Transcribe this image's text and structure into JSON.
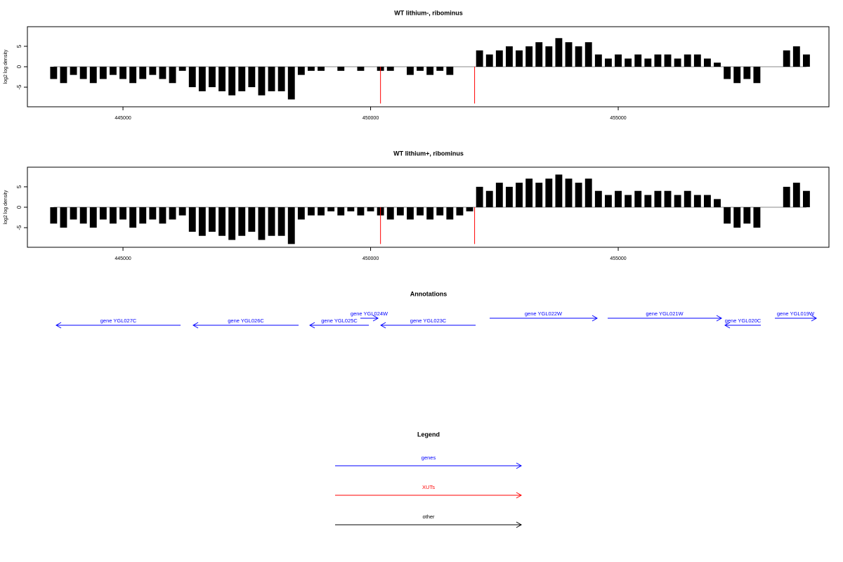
{
  "chart_data": [
    {
      "type": "bar",
      "title": "WT lithium-, ribominus",
      "ylabel": "log2 log density",
      "color": "#000000",
      "x": [
        443600,
        443800,
        444000,
        444200,
        444400,
        444600,
        444800,
        445000,
        445200,
        445400,
        445600,
        445800,
        446000,
        446200,
        446400,
        446600,
        446800,
        447000,
        447200,
        447400,
        447600,
        447800,
        448000,
        448200,
        448400,
        448600,
        448800,
        449000,
        449200,
        449400,
        449600,
        449800,
        450000,
        450200,
        450400,
        450600,
        450800,
        451000,
        451200,
        451400,
        451600,
        451800,
        452000,
        452200,
        452400,
        452600,
        452800,
        453000,
        453200,
        453400,
        453600,
        453800,
        454000,
        454200,
        454400,
        454600,
        454800,
        455000,
        455200,
        455400,
        455600,
        455800,
        456000,
        456200,
        456400,
        456600,
        456800,
        457000,
        457200,
        457400,
        457600,
        457800,
        458000,
        458200,
        458400,
        458600,
        458800
      ],
      "values": [
        -3,
        -4,
        -2,
        -3,
        -4,
        -3,
        -2,
        -3,
        -4,
        -3,
        -2,
        -3,
        -4,
        -1,
        -5,
        -6,
        -5,
        -6,
        -7,
        -6,
        -5,
        -7,
        -6,
        -6,
        -8,
        -2,
        -1,
        -1,
        0,
        -1,
        0,
        -1,
        0,
        -1,
        -1,
        0,
        -2,
        -1,
        -2,
        -1,
        -2,
        0,
        0,
        4,
        3,
        4,
        5,
        4,
        5,
        6,
        5,
        7,
        6,
        5,
        6,
        3,
        2,
        3,
        2,
        3,
        2,
        3,
        3,
        2,
        3,
        3,
        2,
        1,
        -3,
        -4,
        -3,
        -4,
        0,
        0,
        4,
        5,
        3
      ],
      "highlights": {
        "color": "#ff0000",
        "x": [
          450200,
          452100
        ],
        "values": [
          -9,
          -9
        ]
      },
      "xlim": [
        443070,
        459255
      ],
      "ylim": [
        -9.8,
        9.8
      ],
      "xticks": [
        445000,
        450000,
        455000
      ],
      "yticks": [
        -5,
        0,
        5
      ]
    },
    {
      "type": "bar",
      "title": "WT lithium+, ribominus",
      "ylabel": "log2 log density",
      "color": "#000000",
      "x": [
        443600,
        443800,
        444000,
        444200,
        444400,
        444600,
        444800,
        445000,
        445200,
        445400,
        445600,
        445800,
        446000,
        446200,
        446400,
        446600,
        446800,
        447000,
        447200,
        447400,
        447600,
        447800,
        448000,
        448200,
        448400,
        448600,
        448800,
        449000,
        449200,
        449400,
        449600,
        449800,
        450000,
        450200,
        450400,
        450600,
        450800,
        451000,
        451200,
        451400,
        451600,
        451800,
        452000,
        452200,
        452400,
        452600,
        452800,
        453000,
        453200,
        453400,
        453600,
        453800,
        454000,
        454200,
        454400,
        454600,
        454800,
        455000,
        455200,
        455400,
        455600,
        455800,
        456000,
        456200,
        456400,
        456600,
        456800,
        457000,
        457200,
        457400,
        457600,
        457800,
        458000,
        458200,
        458400,
        458600,
        458800
      ],
      "values": [
        -4,
        -5,
        -3,
        -4,
        -5,
        -3,
        -4,
        -3,
        -5,
        -4,
        -3,
        -4,
        -3,
        -2,
        -6,
        -7,
        -6,
        -7,
        -8,
        -7,
        -6,
        -8,
        -7,
        -7,
        -9,
        -3,
        -2,
        -2,
        -1,
        -2,
        -1,
        -2,
        -1,
        -2,
        -3,
        -2,
        -3,
        -2,
        -3,
        -2,
        -3,
        -2,
        -1,
        5,
        4,
        6,
        5,
        6,
        7,
        6,
        7,
        8,
        7,
        6,
        7,
        4,
        3,
        4,
        3,
        4,
        3,
        4,
        4,
        3,
        4,
        3,
        3,
        2,
        -4,
        -5,
        -4,
        -5,
        0,
        0,
        5,
        6,
        4
      ],
      "highlights": {
        "color": "#ff0000",
        "x": [
          450200,
          452100
        ],
        "values": [
          -9,
          -9
        ]
      },
      "xlim": [
        443070,
        459255
      ],
      "ylim": [
        -9.8,
        9.8
      ],
      "xticks": [
        445000,
        450000,
        455000
      ],
      "yticks": [
        -5,
        0,
        5
      ]
    }
  ],
  "annotations": {
    "title": "Annotations",
    "color": "#0000ff",
    "genes": [
      {
        "label": "gene YGL027C",
        "from": 446163,
        "to": 443652
      },
      {
        "label": "gene YGL026C",
        "from": 448546,
        "to": 446418
      },
      {
        "label": "gene YGL025C",
        "from": 449965,
        "to": 448773
      },
      {
        "label": "gene YGL024W",
        "from": 449794,
        "to": 450149
      },
      {
        "label": "gene YGL023C",
        "from": 452121,
        "to": 450206
      },
      {
        "label": "gene YGL022W",
        "from": 452404,
        "to": 454574
      },
      {
        "label": "gene YGL021W",
        "from": 454787,
        "to": 457085
      },
      {
        "label": "gene YGL020C",
        "from": 457879,
        "to": 457156
      },
      {
        "label": "gene YGL019W",
        "from": 458163,
        "to": 459000
      }
    ]
  },
  "legend": {
    "title": "Legend",
    "items": [
      {
        "label": "genes",
        "color": "#0000ff"
      },
      {
        "label": "XUTs",
        "color": "#ff0000"
      },
      {
        "label": "other",
        "color": "#000000"
      }
    ]
  }
}
